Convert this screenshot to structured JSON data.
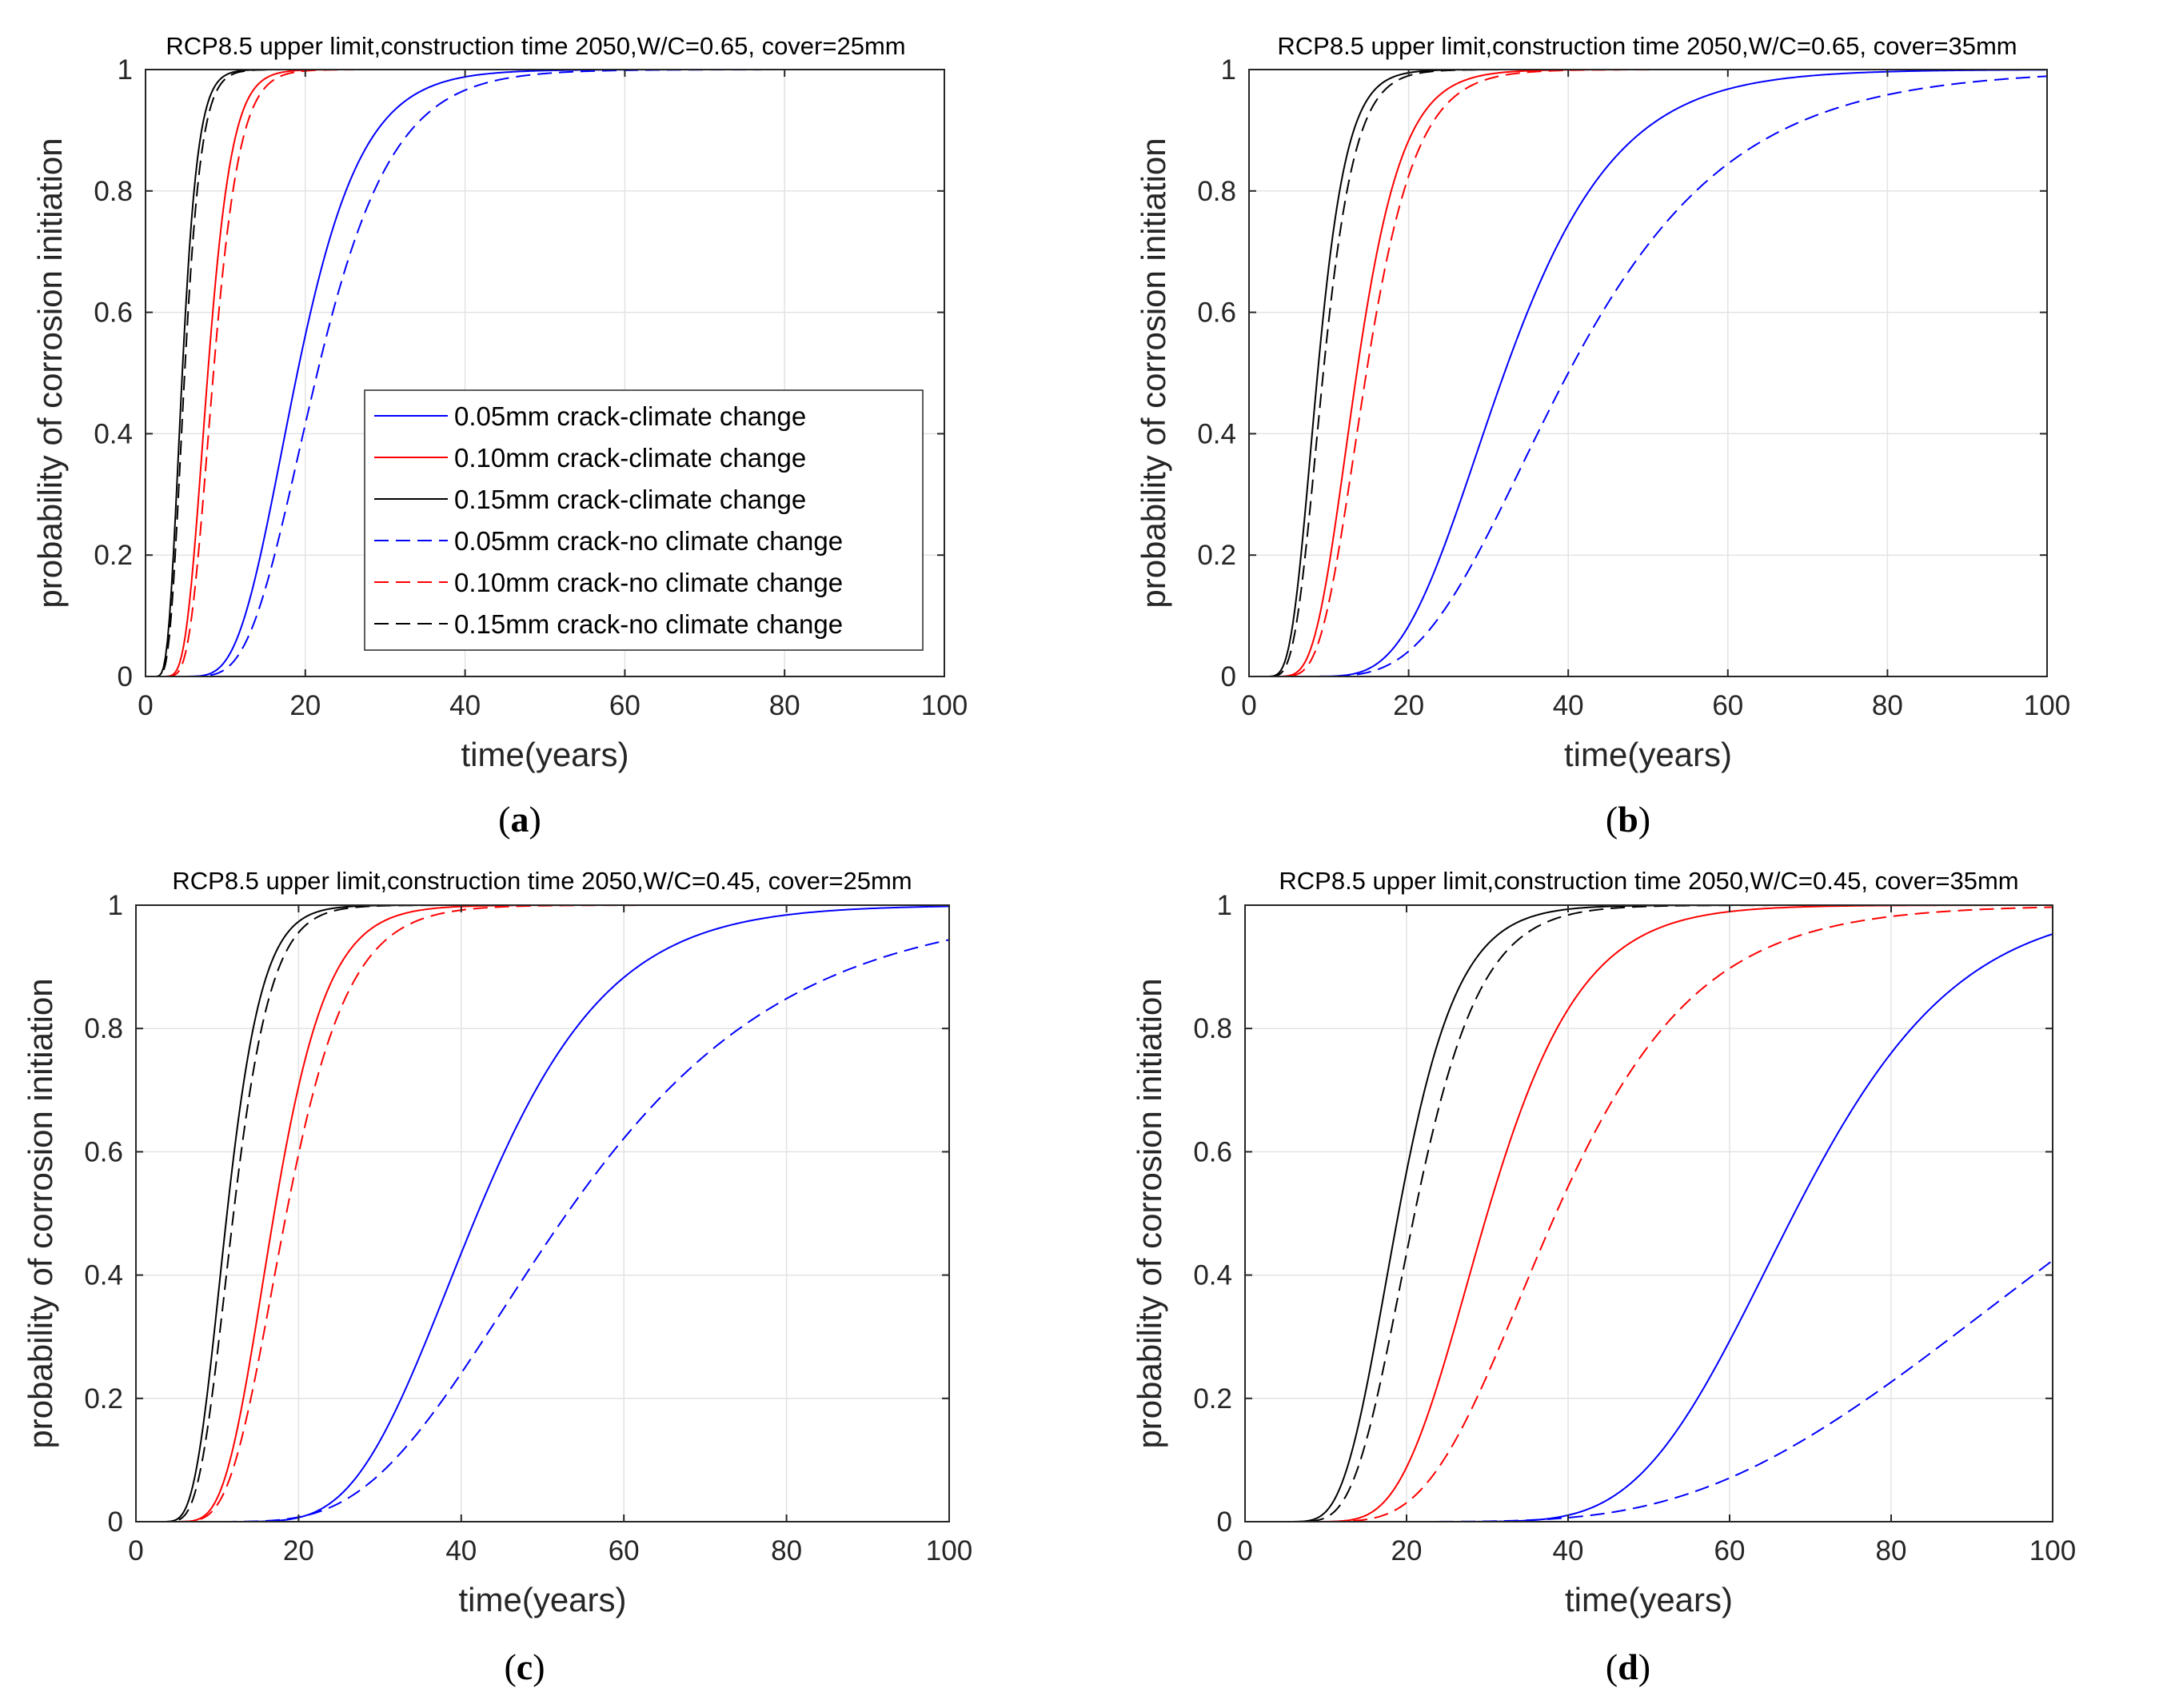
{
  "chart_data": [
    {
      "panel": "(a)",
      "caption_letter": "a",
      "type": "line",
      "title": "RCP8.5 upper limit,construction time 2050,W/C=0.65, cover=25mm",
      "xlabel": "time(years)",
      "ylabel": "probability of corrosion initiation",
      "xlim": [
        0,
        100
      ],
      "ylim": [
        0,
        1
      ],
      "xticks": [
        "0",
        "20",
        "40",
        "60",
        "80",
        "100"
      ],
      "yticks": [
        "0",
        "0.2",
        "0.4",
        "0.6",
        "0.8",
        "1"
      ],
      "grid": true,
      "legend": "center-right",
      "series": [
        {
          "name": "0.05mm crack-climate change",
          "color": "#0000ff",
          "dash": false,
          "median": 19,
          "sigma": 0.33
        },
        {
          "name": "0.10mm crack-climate change",
          "color": "#ff0000",
          "dash": false,
          "median": 7.8,
          "sigma": 0.3
        },
        {
          "name": "0.15mm crack-climate change",
          "color": "#000000",
          "dash": false,
          "median": 4.6,
          "sigma": 0.33
        },
        {
          "name": "0.05mm crack-no climate change",
          "color": "#0000ff",
          "dash": true,
          "median": 21.5,
          "sigma": 0.34
        },
        {
          "name": "0.10mm crack-no climate change",
          "color": "#ff0000",
          "dash": true,
          "median": 8.5,
          "sigma": 0.3
        },
        {
          "name": "0.15mm crack-no climate change",
          "color": "#000000",
          "dash": true,
          "median": 4.9,
          "sigma": 0.33
        }
      ]
    },
    {
      "panel": "(b)",
      "caption_letter": "b",
      "type": "line",
      "title": "RCP8.5 upper limit,construction time 2050,W/C=0.65, cover=35mm",
      "xlabel": "time(years)",
      "ylabel": "probability of corrosion initiation",
      "xlim": [
        0,
        100
      ],
      "ylim": [
        0,
        1
      ],
      "xticks": [
        "0",
        "20",
        "40",
        "60",
        "80",
        "100"
      ],
      "yticks": [
        "0",
        "0.2",
        "0.4",
        "0.6",
        "0.8",
        "1"
      ],
      "grid": true,
      "legend": "none",
      "series": [
        {
          "name": "0.05mm crack-climate change",
          "color": "#0000ff",
          "dash": false,
          "median": 32,
          "sigma": 0.34
        },
        {
          "name": "0.10mm crack-climate change",
          "color": "#ff0000",
          "dash": false,
          "median": 13.5,
          "sigma": 0.33
        },
        {
          "name": "0.15mm crack-climate change",
          "color": "#000000",
          "dash": false,
          "median": 8.6,
          "sigma": 0.33
        },
        {
          "name": "0.05mm crack-no climate change",
          "color": "#0000ff",
          "dash": true,
          "median": 40,
          "sigma": 0.4
        },
        {
          "name": "0.10mm crack-no climate change",
          "color": "#ff0000",
          "dash": true,
          "median": 14.7,
          "sigma": 0.33
        },
        {
          "name": "0.15mm crack-no climate change",
          "color": "#000000",
          "dash": true,
          "median": 9.3,
          "sigma": 0.33
        }
      ]
    },
    {
      "panel": "(c)",
      "caption_letter": "c",
      "type": "line",
      "title": "RCP8.5 upper limit,construction time 2050,W/C=0.45, cover=25mm",
      "xlabel": "time(years)",
      "ylabel": "probability of corrosion initiation",
      "xlim": [
        0,
        100
      ],
      "ylim": [
        0,
        1
      ],
      "xticks": [
        "0",
        "20",
        "40",
        "60",
        "80",
        "100"
      ],
      "yticks": [
        "0",
        "0.2",
        "0.4",
        "0.6",
        "0.8",
        "1"
      ],
      "grid": true,
      "legend": "none",
      "series": [
        {
          "name": "0.05mm crack-climate change",
          "color": "#0000ff",
          "dash": false,
          "median": 42,
          "sigma": 0.3
        },
        {
          "name": "0.10mm crack-climate change",
          "color": "#ff0000",
          "dash": false,
          "median": 17,
          "sigma": 0.3
        },
        {
          "name": "0.15mm crack-climate change",
          "color": "#000000",
          "dash": false,
          "median": 11.2,
          "sigma": 0.3
        },
        {
          "name": "0.05mm crack-no climate change",
          "color": "#0000ff",
          "dash": true,
          "median": 53,
          "sigma": 0.4
        },
        {
          "name": "0.10mm crack-no climate change",
          "color": "#ff0000",
          "dash": true,
          "median": 18.5,
          "sigma": 0.32
        },
        {
          "name": "0.15mm crack-no climate change",
          "color": "#000000",
          "dash": true,
          "median": 12,
          "sigma": 0.3
        }
      ]
    },
    {
      "panel": "(d)",
      "caption_letter": "d",
      "type": "line",
      "title": "RCP8.5 upper limit,construction time 2050,W/C=0.45, cover=35mm",
      "xlabel": "time(years)",
      "ylabel": "probability of corrosion initiation",
      "xlim": [
        0,
        100
      ],
      "ylim": [
        0,
        1
      ],
      "xticks": [
        "0",
        "20",
        "40",
        "60",
        "80",
        "100"
      ],
      "yticks": [
        "0",
        "0.2",
        "0.4",
        "0.6",
        "0.8",
        "1"
      ],
      "grid": true,
      "legend": "none",
      "series": [
        {
          "name": "0.05mm crack-climate change",
          "color": "#0000ff",
          "dash": false,
          "median": 68,
          "sigma": 0.23
        },
        {
          "name": "0.10mm crack-climate change",
          "color": "#ff0000",
          "dash": false,
          "median": 30,
          "sigma": 0.3
        },
        {
          "name": "0.15mm crack-climate change",
          "color": "#000000",
          "dash": false,
          "median": 19,
          "sigma": 0.3
        },
        {
          "name": "0.05mm crack-no climate change",
          "color": "#0000ff",
          "dash": true,
          "median": 108,
          "sigma": 0.4
        },
        {
          "name": "0.10mm crack-no climate change",
          "color": "#ff0000",
          "dash": true,
          "median": 38.5,
          "sigma": 0.35
        },
        {
          "name": "0.15mm crack-no climate change",
          "color": "#000000",
          "dash": true,
          "median": 21,
          "sigma": 0.3
        }
      ]
    }
  ]
}
